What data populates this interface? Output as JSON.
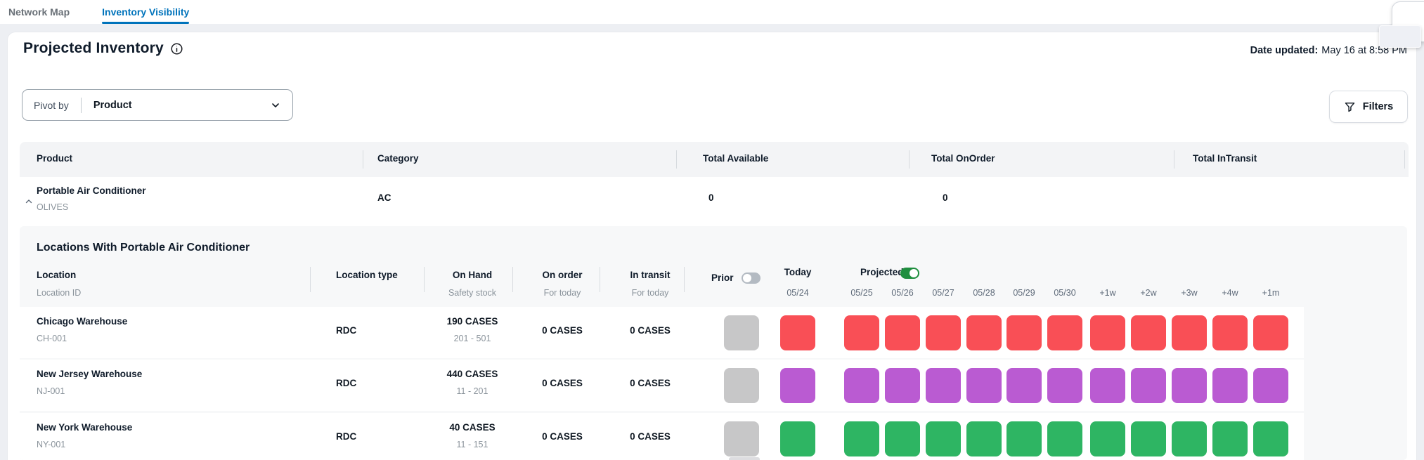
{
  "tabs": [
    {
      "label": "Network Map",
      "active": false
    },
    {
      "label": "Inventory Visibility",
      "active": true
    }
  ],
  "header": {
    "title": "Projected Inventory",
    "info_icon": "info-circle-icon",
    "date_updated_label": "Date updated:",
    "date_updated_value": "May 16 at 8:58 PM"
  },
  "toolbar": {
    "pivot_label": "Pivot by",
    "pivot_value": "Product",
    "pivot_chevron_icon": "chevron-down-icon",
    "filters_label": "Filters",
    "filters_icon": "funnel-icon"
  },
  "summary_table": {
    "columns": [
      "Product",
      "Category",
      "Total Available",
      "Total OnOrder",
      "Total InTransit"
    ],
    "rows": [
      {
        "product": "Portable Air Conditioner",
        "product_sub": "OLIVES",
        "category": "AC",
        "total_available": "0",
        "total_onorder": "0",
        "total_intransit": "",
        "expanded": true
      }
    ]
  },
  "locations": {
    "section_title": "Locations With Portable Air Conditioner",
    "columns": {
      "location": {
        "label": "Location",
        "sublabel": "Location ID"
      },
      "location_type": {
        "label": "Location type"
      },
      "on_hand": {
        "label": "On Hand",
        "sublabel": "Safety stock"
      },
      "on_order": {
        "label": "On order",
        "sublabel": "For today"
      },
      "in_transit": {
        "label": "In transit",
        "sublabel": "For today"
      },
      "prior": {
        "label": "Prior",
        "toggle_state": "off"
      },
      "today": {
        "label": "Today",
        "date": "05/24"
      },
      "projected": {
        "label": "Projected",
        "toggle_state": "on"
      }
    },
    "projected_dates": [
      "05/25",
      "05/26",
      "05/27",
      "05/28",
      "05/29",
      "05/30",
      "+1w",
      "+2w",
      "+3w",
      "+4w",
      "+1m"
    ],
    "rows": [
      {
        "location": "Chicago Warehouse",
        "location_id": "CH-001",
        "location_type": "RDC",
        "on_hand": "190 CASES",
        "safety_stock": "201 - 501",
        "on_order": "0 CASES",
        "in_transit": "0 CASES",
        "prior_color": "#c7c7c8",
        "series_color": "#f94f56"
      },
      {
        "location": "New Jersey Warehouse",
        "location_id": "NJ-001",
        "location_type": "RDC",
        "on_hand": "440 CASES",
        "safety_stock": "11 - 201",
        "on_order": "0 CASES",
        "in_transit": "0 CASES",
        "prior_color": "#c7c7c8",
        "series_color": "#ba5bd2"
      },
      {
        "location": "New York Warehouse",
        "location_id": "NY-001",
        "location_type": "RDC",
        "on_hand": "40 CASES",
        "safety_stock": "11 - 151",
        "on_order": "0 CASES",
        "in_transit": "0 CASES",
        "prior_color": "#c7c7c8",
        "series_color": "#2eb563"
      }
    ]
  },
  "colors": {
    "accent_blue": "#0073bb",
    "toggle_on_green": "#1e8e3e",
    "toggle_off_gray": "#b3bac2",
    "prior_cell_gray": "#c7c7c8",
    "chicago_red": "#f94f56",
    "new_jersey_purple": "#ba5bd2",
    "new_york_green": "#2eb563"
  }
}
